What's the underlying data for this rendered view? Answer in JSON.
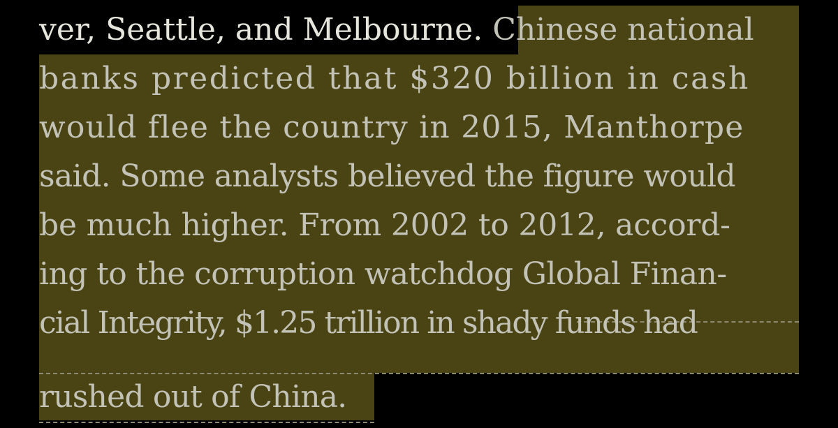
{
  "reader": {
    "lines": [
      {
        "plain": "ver, Seattle, and Melbourne. ",
        "highlighted": "Chinese national"
      },
      {
        "highlighted": "banks predicted that $320 billion in cash"
      },
      {
        "highlighted": "would flee the country in 2015, Manthorpe"
      },
      {
        "highlighted": "said. Some analysts believed the figure would"
      },
      {
        "highlighted": "be much higher. From 2002 to 2012, accord-"
      },
      {
        "highlighted": "ing to the corruption watchdog Global Finan-"
      },
      {
        "highlighted": "cial Integrity, $1.25 trillion in shady funds had"
      },
      {
        "highlighted": "rushed out of China."
      }
    ]
  },
  "colors": {
    "background": "#000000",
    "highlight": "#4a4414",
    "text": "#c2c2b6"
  }
}
